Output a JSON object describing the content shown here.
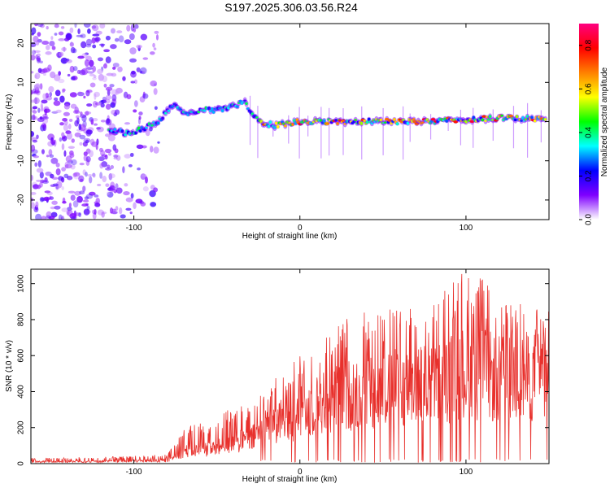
{
  "title": "S197.2025.306.03.56.R24",
  "colors": {
    "snr_line": "#e8302c",
    "axis": "#000000",
    "background": "#ffffff"
  },
  "chart_data": [
    {
      "type": "heatmap",
      "title": "S197.2025.306.03.56.R24",
      "xlabel": "Height of straight line (km)",
      "ylabel": "Frequency (Hz)",
      "xlim": [
        -162,
        150
      ],
      "ylim": [
        -25,
        25
      ],
      "xticks": [
        -100,
        0,
        100
      ],
      "yticks": [
        -20,
        -10,
        0,
        10,
        20
      ],
      "colorbar": {
        "label": "Normalized spectral amplitude",
        "range": [
          0.0,
          0.9
        ],
        "ticks": [
          0.0,
          0.2,
          0.4,
          0.6,
          0.8
        ],
        "tick_labels": [
          "0.0",
          "0.2",
          "0.4",
          "0.6",
          "0.8"
        ],
        "colormap": [
          "#ffffff",
          "#7f00ff",
          "#0000ff",
          "#00ffff",
          "#00ff00",
          "#ffff00",
          "#ff8000",
          "#ff0000",
          "#ff0080"
        ]
      },
      "signal_trace": {
        "x": [
          -115,
          -105,
          -95,
          -85,
          -80,
          -75,
          -70,
          -60,
          -50,
          -40,
          -33,
          -30,
          -25,
          -15,
          0,
          25,
          50,
          75,
          100,
          125,
          148
        ],
        "y_freq": [
          -2,
          -3,
          -2,
          0,
          3,
          4,
          2,
          3,
          3,
          4,
          5,
          3,
          0,
          -1,
          0,
          0,
          0,
          0,
          0.5,
          1,
          0.5
        ]
      },
      "noise_region_x": [
        -162,
        -85
      ]
    },
    {
      "type": "line",
      "xlabel": "Height of straight line (km)",
      "ylabel": "SNR (10 * v/v)",
      "xlim": [
        -162,
        150
      ],
      "ylim": [
        0,
        1080
      ],
      "xticks": [
        -100,
        0,
        100
      ],
      "yticks": [
        0,
        200,
        400,
        600,
        800,
        1000
      ],
      "series": [
        {
          "name": "SNR",
          "envelope_x": [
            -162,
            -110,
            -80,
            -70,
            -60,
            -50,
            -40,
            -30,
            -20,
            -10,
            0,
            10,
            20,
            30,
            40,
            50,
            60,
            70,
            80,
            90,
            100,
            110,
            120,
            130,
            140,
            150
          ],
          "envelope_upper": [
            30,
            40,
            50,
            200,
            230,
            250,
            330,
            310,
            450,
            500,
            620,
            680,
            760,
            820,
            860,
            850,
            880,
            930,
            900,
            1000,
            1080,
            1050,
            870,
            900,
            880,
            870
          ],
          "envelope_median": [
            12,
            15,
            20,
            80,
            90,
            100,
            140,
            150,
            250,
            280,
            330,
            380,
            420,
            450,
            480,
            470,
            500,
            520,
            510,
            550,
            600,
            580,
            550,
            560,
            570,
            560
          ]
        }
      ]
    }
  ]
}
